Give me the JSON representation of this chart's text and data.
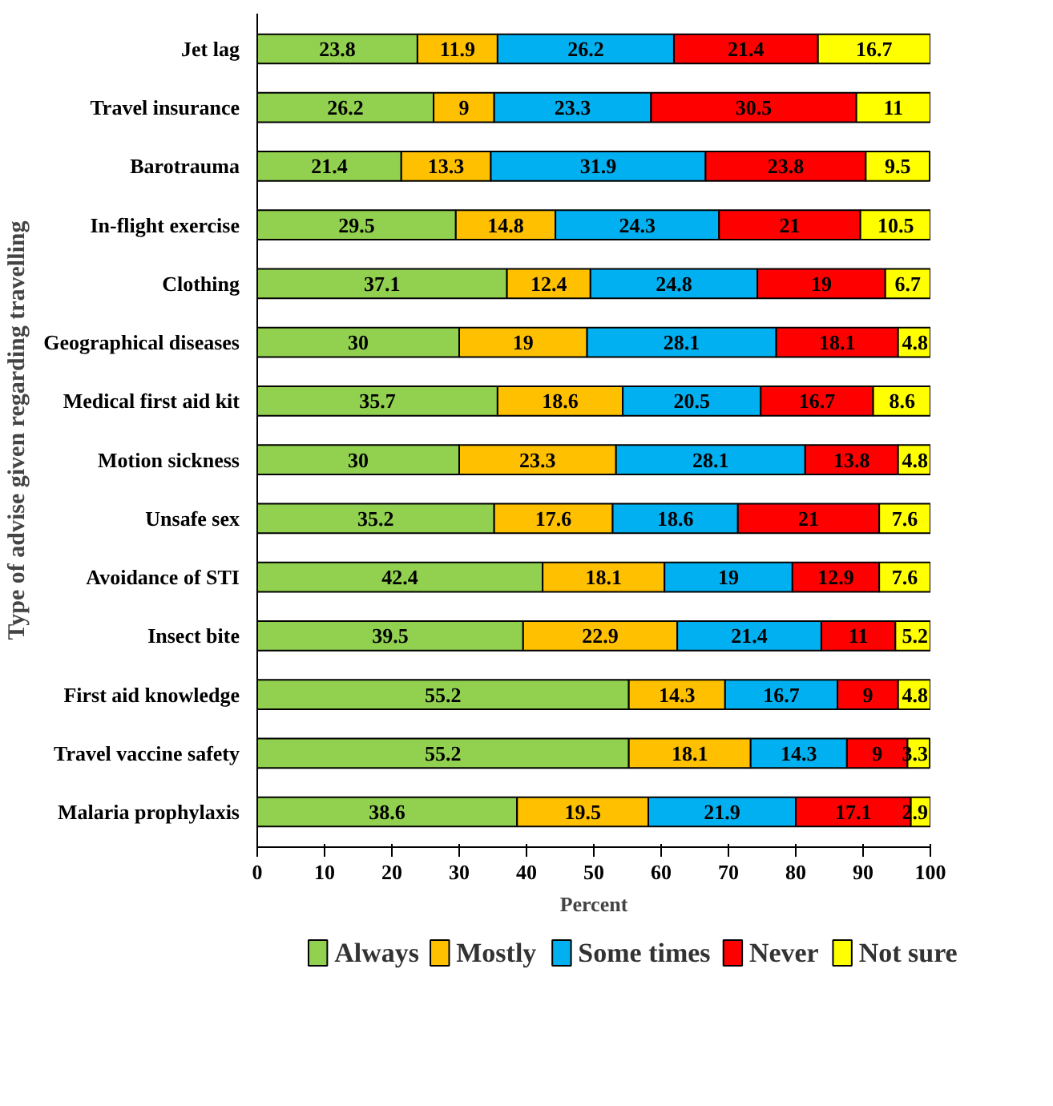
{
  "chart_data": {
    "type": "bar",
    "orientation": "horizontal",
    "stacked": true,
    "data_labels": true,
    "grid": false,
    "legend": "bottom",
    "xlabel": "Percent",
    "ylabel": "Type of advise given regarding travelling",
    "categories": [
      "Jet lag",
      "Travel insurance",
      "Barotrauma",
      "In-flight exercise",
      "Clothing",
      "Geographical diseases",
      "Medical first aid kit",
      "Motion sickness",
      "Unsafe sex",
      "Avoidance of STI",
      "Insect bite",
      "First aid knowledge",
      "Travel vaccine safety",
      "Malaria prophylaxis"
    ],
    "xlim": [
      0,
      100
    ],
    "xticks": [
      0,
      10,
      20,
      30,
      40,
      50,
      60,
      70,
      80,
      90,
      100
    ],
    "series": [
      {
        "name": "Always",
        "color": "#92d050",
        "values": [
          23.8,
          26.2,
          21.4,
          29.5,
          37.1,
          30,
          35.7,
          30,
          35.2,
          42.4,
          39.5,
          55.2,
          55.2,
          38.6
        ]
      },
      {
        "name": "Mostly",
        "color": "#ffc000",
        "values": [
          11.9,
          9,
          13.3,
          14.8,
          12.4,
          19,
          18.6,
          23.3,
          17.6,
          18.1,
          22.9,
          14.3,
          18.1,
          19.5
        ]
      },
      {
        "name": "Some times",
        "color": "#00b0f0",
        "values": [
          26.2,
          23.3,
          31.9,
          24.3,
          24.8,
          28.1,
          20.5,
          28.1,
          18.6,
          19,
          21.4,
          16.7,
          14.3,
          21.9
        ]
      },
      {
        "name": "Never",
        "color": "#ff0000",
        "values": [
          21.4,
          30.5,
          23.8,
          21,
          19,
          18.1,
          16.7,
          13.8,
          21,
          12.9,
          11,
          9,
          9,
          17.1
        ]
      },
      {
        "name": "Not sure",
        "color": "#ffff00",
        "values": [
          16.7,
          11,
          9.5,
          10.5,
          6.7,
          4.8,
          8.6,
          4.8,
          7.6,
          7.6,
          5.2,
          4.8,
          3.3,
          2.9
        ]
      }
    ]
  }
}
